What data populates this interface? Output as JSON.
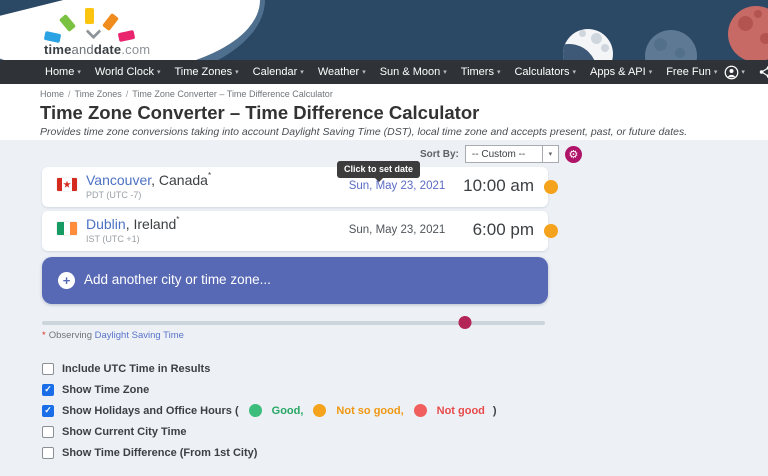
{
  "header": {
    "logo": {
      "time": "time",
      "and": "and",
      "date": "date",
      "com": ".com"
    },
    "nav_items": [
      {
        "label": "Home"
      },
      {
        "label": "World Clock"
      },
      {
        "label": "Time Zones"
      },
      {
        "label": "Calendar"
      },
      {
        "label": "Weather"
      },
      {
        "label": "Sun & Moon"
      },
      {
        "label": "Timers"
      },
      {
        "label": "Calculators"
      },
      {
        "label": "Apps & API"
      },
      {
        "label": "Free Fun"
      }
    ],
    "caret": "▾"
  },
  "breadcrumb": {
    "sep": "/",
    "items": [
      {
        "label": "Home"
      },
      {
        "label": "Time Zones"
      },
      {
        "label": "Time Zone Converter – Time Difference Calculator"
      }
    ]
  },
  "intro": {
    "title": "Time Zone Converter – Time Difference Calculator",
    "subtitle": "Provides time zone conversions taking into account Daylight Saving Time (DST), local time zone and accepts present, past, or future dates."
  },
  "sort": {
    "label": "Sort By:",
    "value": "-- Custom --",
    "chevron": "▾",
    "gear": "⚙"
  },
  "tooltip": {
    "text": "Click to set date"
  },
  "cities": [
    {
      "name": "Vancouver",
      "country": ", Canada",
      "dst_marker": "*",
      "zone": "PDT (UTC -7)",
      "date": "Sun, May 23, 2021",
      "time": "10:00 am",
      "status_color": "#f5a21d"
    },
    {
      "name": "Dublin",
      "country": ", Ireland",
      "dst_marker": "*",
      "zone": "IST (UTC +1)",
      "date": "Sun, May 23, 2021",
      "time": "6:00 pm",
      "status_color": "#f5a21d"
    }
  ],
  "add_row": {
    "plus": "+",
    "label": "Add another city or time zone..."
  },
  "slider": {
    "position_pct": 84
  },
  "dst_note": {
    "marker": "*",
    "text": "Observing",
    "link": "Daylight Saving Time"
  },
  "options": [
    {
      "label": "Include UTC Time in Results",
      "checked": false
    },
    {
      "label": "Show Time Zone",
      "checked": true
    },
    {
      "label": "Show Holidays and Office Hours (",
      "checked": true
    },
    {
      "label": "Show Current City Time",
      "checked": false
    },
    {
      "label": "Show Time Difference (From 1st City)",
      "checked": false
    }
  ],
  "legend": {
    "items": [
      {
        "label": "Good,",
        "dot_color": "#3cbd7c",
        "text_color": "#27a664"
      },
      {
        "label": "Not so good,",
        "dot_color": "#f5a21d",
        "text_color": "#ef9710"
      },
      {
        "label": "Not good",
        "dot_color": "#f15e5e",
        "text_color": "#e84a4a"
      }
    ],
    "close": ")"
  },
  "check_glyph": "✓"
}
